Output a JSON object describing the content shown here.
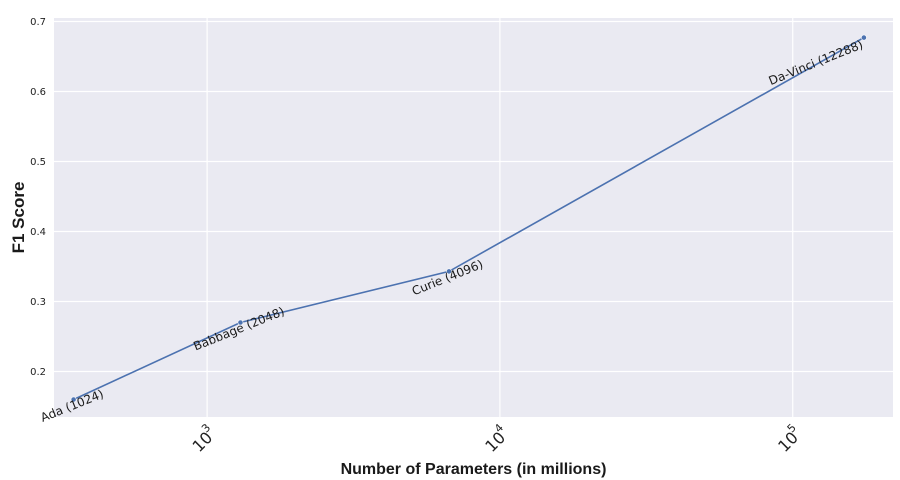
{
  "chart_data": {
    "type": "line",
    "title": "",
    "xlabel": "Number of Parameters (in millions)",
    "ylabel": "F1 Score",
    "x_scale": "log",
    "xlim": [
      300,
      220000
    ],
    "ylim": [
      0.135,
      0.705
    ],
    "x_ticks": [
      {
        "value": 1000,
        "base": "10",
        "exponent": "3"
      },
      {
        "value": 10000,
        "base": "10",
        "exponent": "4"
      },
      {
        "value": 100000,
        "base": "10",
        "exponent": "5"
      }
    ],
    "y_ticks": [
      "0.2",
      "0.3",
      "0.4",
      "0.5",
      "0.6",
      "0.7"
    ],
    "grid": true,
    "colors": {
      "background": "#eaeaf2",
      "grid": "#ffffff",
      "line": "#4c72b0"
    },
    "series": [
      {
        "points": [
          {
            "x": 350,
            "y": 0.16,
            "label": "Ada (1024)"
          },
          {
            "x": 1300,
            "y": 0.27,
            "label": "Babbage (2048)"
          },
          {
            "x": 6700,
            "y": 0.343,
            "label": "Curie (4096)"
          },
          {
            "x": 175000,
            "y": 0.677,
            "label": "Da-Vinci (12288)"
          }
        ]
      }
    ]
  }
}
